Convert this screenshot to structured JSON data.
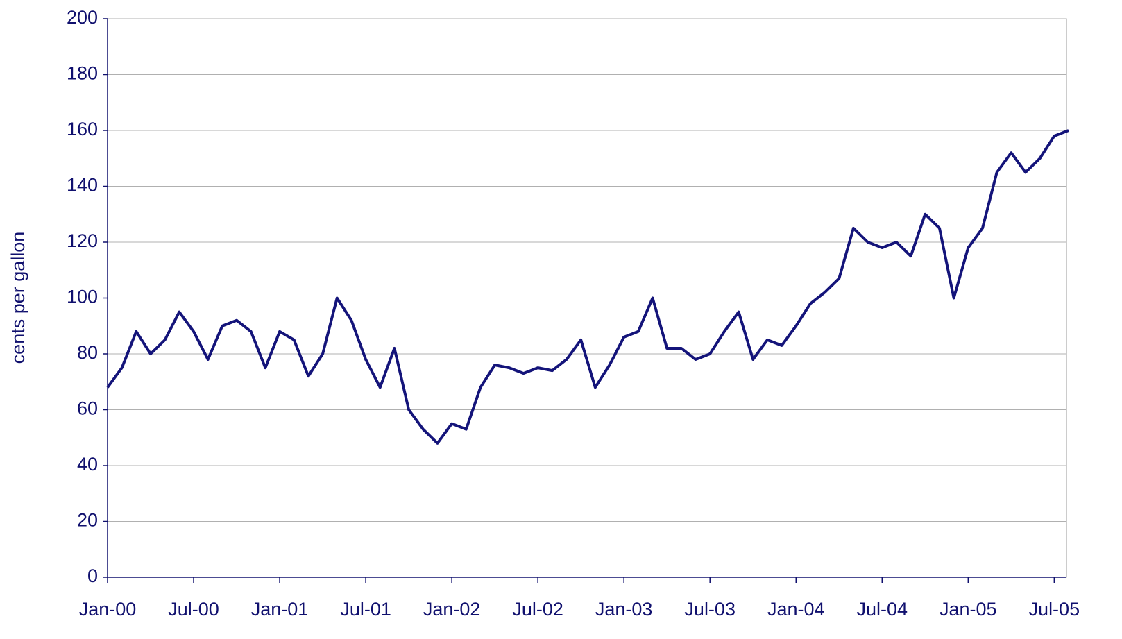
{
  "chart_data": {
    "type": "line",
    "y_label": "cents per gallon",
    "categories": [
      "Jan-00",
      null,
      null,
      null,
      null,
      null,
      "Jul-00",
      null,
      null,
      null,
      null,
      null,
      "Jan-01",
      null,
      null,
      null,
      null,
      null,
      "Jul-01",
      null,
      null,
      null,
      null,
      null,
      "Jan-02",
      null,
      null,
      null,
      null,
      null,
      "Jul-02",
      null,
      null,
      null,
      null,
      null,
      "Jan-03",
      null,
      null,
      null,
      null,
      null,
      "Jul-03",
      null,
      null,
      null,
      null,
      null,
      "Jan-04",
      null,
      null,
      null,
      null,
      null,
      "Jul-04",
      null,
      null,
      null,
      null,
      null,
      "Jan-05",
      null,
      null,
      null,
      null,
      null,
      "Jul-05",
      null
    ],
    "series": [
      {
        "color": "#14147a",
        "values": [
          68,
          75,
          88,
          80,
          85,
          95,
          88,
          78,
          90,
          92,
          88,
          75,
          88,
          85,
          72,
          80,
          100,
          92,
          78,
          68,
          82,
          60,
          53,
          48,
          55,
          53,
          68,
          76,
          75,
          73,
          75,
          74,
          78,
          85,
          68,
          76,
          86,
          88,
          100,
          82,
          82,
          78,
          80,
          88,
          95,
          78,
          85,
          83,
          90,
          98,
          102,
          107,
          125,
          120,
          118,
          120,
          115,
          130,
          125,
          100,
          118,
          125,
          145,
          152,
          145,
          150,
          158,
          160
        ]
      }
    ],
    "ylim": [
      0,
      200
    ],
    "yticks": [
      0,
      20,
      40,
      60,
      80,
      100,
      120,
      140,
      160,
      180,
      200
    ],
    "grid": true
  }
}
